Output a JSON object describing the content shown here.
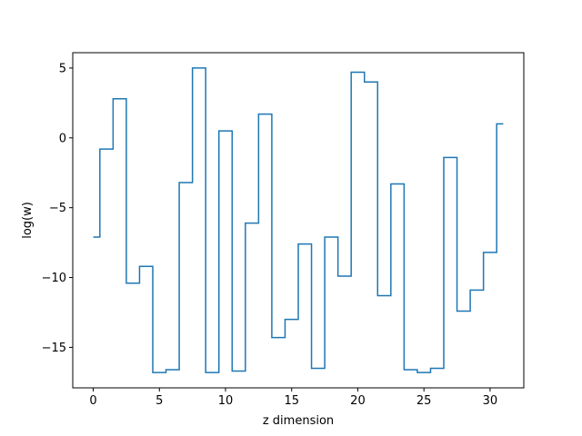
{
  "chart_data": {
    "type": "line",
    "drawstyle": "steps-mid",
    "title": "",
    "xlabel": "z dimension",
    "ylabel": "log(w)",
    "xlim": [
      -1.55,
      32.55
    ],
    "ylim": [
      -17.9,
      6.1
    ],
    "xticks": [
      0,
      5,
      10,
      15,
      20,
      25,
      30
    ],
    "yticks": [
      -15,
      -10,
      -5,
      0,
      5
    ],
    "grid": false,
    "line_color": "#1f77b4",
    "series": [
      {
        "x": [
          0,
          1,
          2,
          3,
          4,
          5,
          6,
          7,
          8,
          9,
          10,
          11,
          12,
          13,
          14,
          15,
          16,
          17,
          18,
          19,
          20,
          21,
          22,
          23,
          24,
          25,
          26,
          27,
          28,
          29,
          30,
          31
        ],
        "values": [
          -7.1,
          -0.8,
          2.8,
          -10.4,
          -9.2,
          -16.8,
          -16.6,
          -3.2,
          5.0,
          -16.8,
          0.5,
          -16.7,
          -6.1,
          1.7,
          -14.3,
          -13.0,
          -7.6,
          -16.5,
          -7.1,
          -9.9,
          4.7,
          4.0,
          -11.3,
          -3.3,
          -16.6,
          -16.8,
          -16.5,
          -1.4,
          -12.4,
          -10.9,
          -8.2,
          1.0
        ]
      }
    ]
  }
}
